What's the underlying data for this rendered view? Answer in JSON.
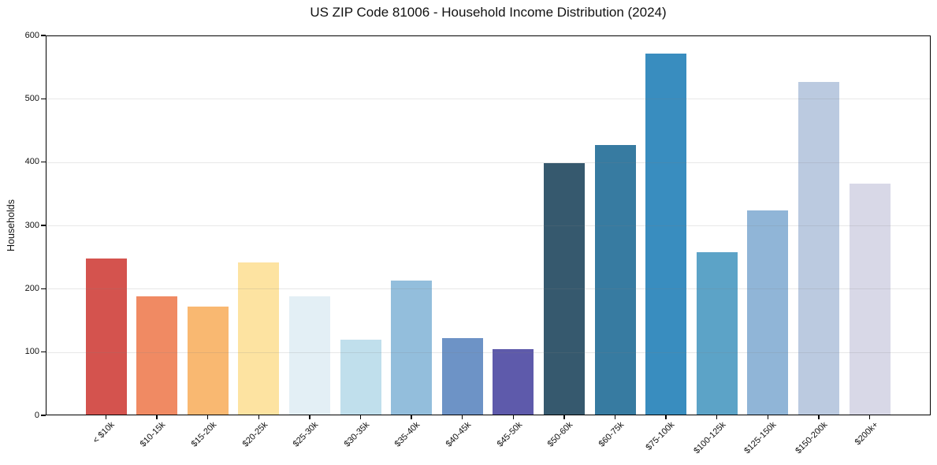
{
  "chart_data": {
    "type": "bar",
    "title": "US ZIP Code 81006 - Household Income Distribution (2024)",
    "xlabel": "",
    "ylabel": "Households",
    "categories": [
      "< $10k",
      "$10-15k",
      "$15-20k",
      "$20-25k",
      "$25-30k",
      "$30-35k",
      "$35-40k",
      "$40-45k",
      "$45-50k",
      "$50-60k",
      "$60-75k",
      "$75-100k",
      "$100-125k",
      "$125-150k",
      "$150-200k",
      "$200k+"
    ],
    "values": [
      248,
      188,
      172,
      241,
      188,
      120,
      213,
      122,
      105,
      398,
      427,
      571,
      258,
      324,
      526,
      366
    ],
    "bar_colors": [
      "#d4534e",
      "#f08a63",
      "#f9b871",
      "#fde3a1",
      "#e3eff5",
      "#c0dfec",
      "#93bedc",
      "#6d93c6",
      "#5e5aab",
      "#36596e",
      "#377ba1",
      "#398dbf",
      "#5ca3c7",
      "#90b5d7",
      "#bbcae0",
      "#d8d8e7"
    ],
    "ylim": [
      0,
      600
    ],
    "yticks": [
      0,
      100,
      200,
      300,
      400,
      500,
      600
    ],
    "grid": true,
    "legend_position": "none",
    "colors": {
      "background": "#ffffff",
      "spine": "#000000",
      "gridline": "#ebebeb",
      "text": "#111111"
    }
  }
}
